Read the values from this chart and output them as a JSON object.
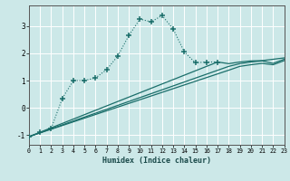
{
  "xlabel": "Humidex (Indice chaleur)",
  "bg_color": "#cce8e8",
  "grid_color": "#b8d8d8",
  "line_color": "#1a6e6a",
  "xlim": [
    0,
    23
  ],
  "ylim": [
    -1.35,
    3.75
  ],
  "xticks": [
    0,
    1,
    2,
    3,
    4,
    5,
    6,
    7,
    8,
    9,
    10,
    11,
    12,
    13,
    14,
    15,
    16,
    17,
    18,
    19,
    20,
    21,
    22,
    23
  ],
  "yticks": [
    -1,
    0,
    1,
    2,
    3
  ],
  "main_series": {
    "x": [
      0,
      1,
      2,
      3,
      4,
      5,
      6,
      7,
      8,
      9,
      10,
      11,
      12,
      13,
      14,
      15,
      16,
      17
    ],
    "y": [
      -1.05,
      -0.9,
      -0.75,
      0.35,
      1.0,
      1.0,
      1.1,
      1.4,
      1.9,
      2.65,
      3.25,
      3.15,
      3.38,
      2.88,
      2.05,
      1.65,
      1.68,
      1.68
    ]
  },
  "straight_lines": [
    {
      "x": [
        0,
        17,
        18,
        19,
        20,
        21,
        22,
        23
      ],
      "y": [
        -1.05,
        1.68,
        1.62,
        1.68,
        1.72,
        1.73,
        1.78,
        1.83
      ]
    },
    {
      "x": [
        0,
        18,
        19,
        20,
        21,
        22,
        23
      ],
      "y": [
        -1.05,
        1.52,
        1.62,
        1.68,
        1.72,
        1.63,
        1.78
      ]
    },
    {
      "x": [
        0,
        18,
        19,
        20,
        21,
        22,
        23
      ],
      "y": [
        -1.05,
        1.38,
        1.52,
        1.58,
        1.63,
        1.58,
        1.73
      ]
    }
  ]
}
